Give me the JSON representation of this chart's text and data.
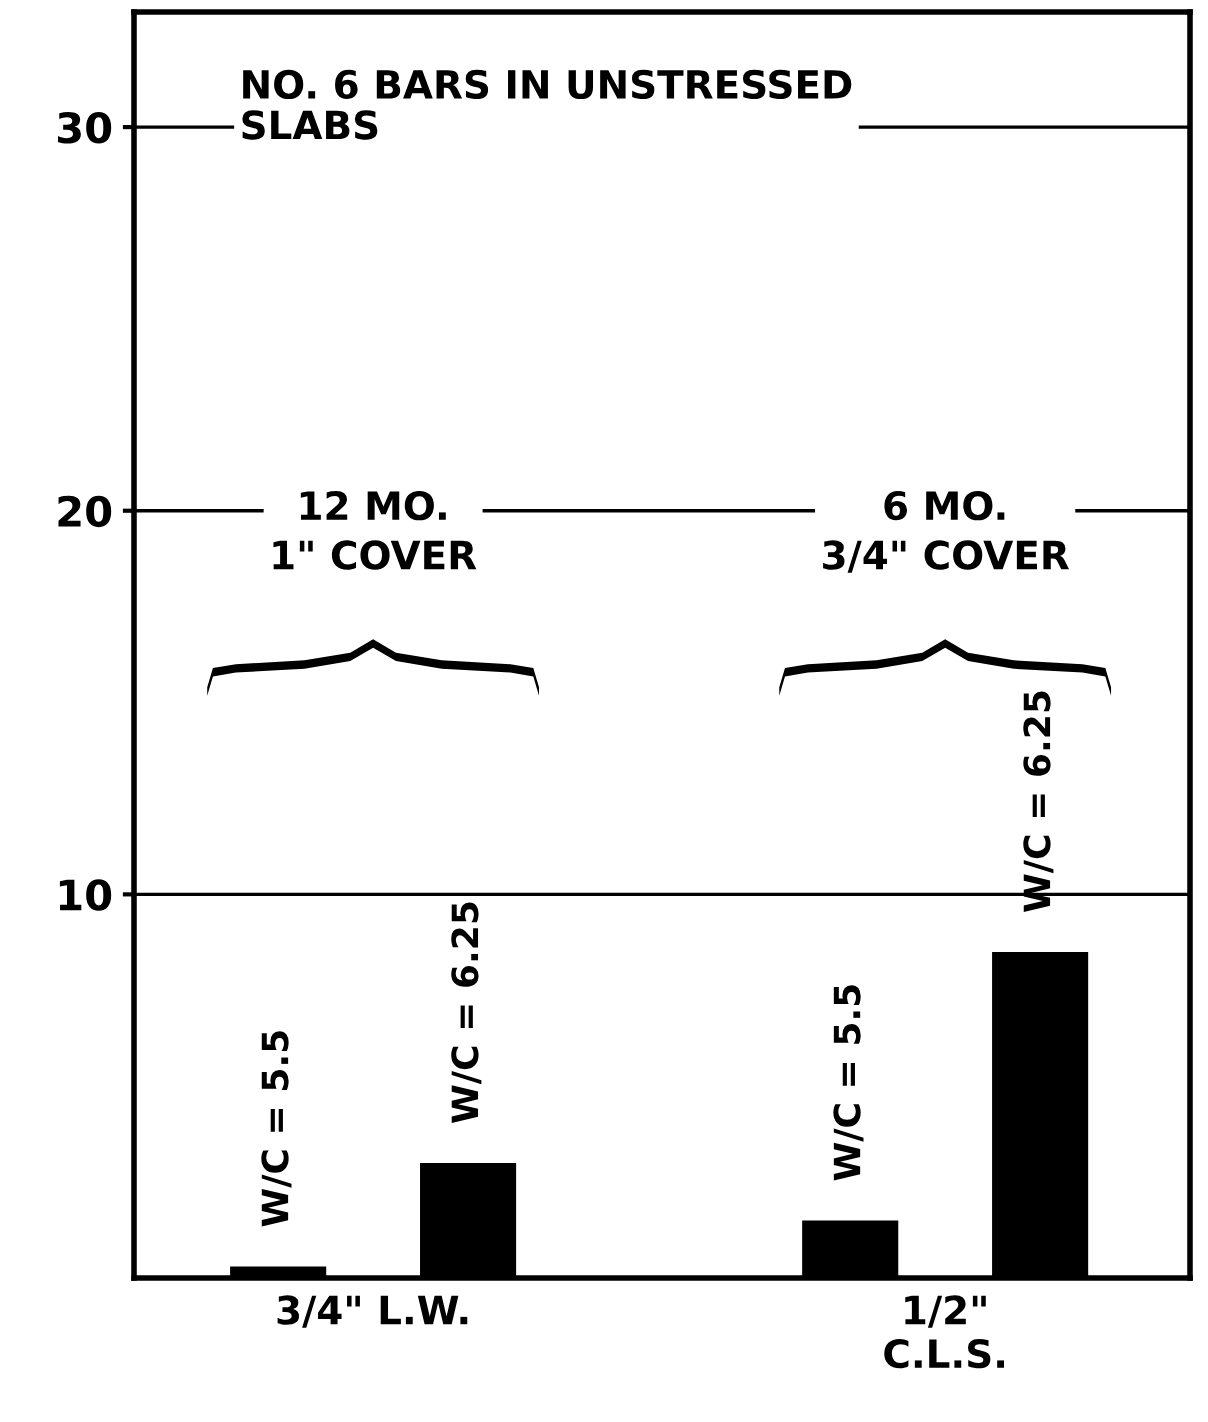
{
  "chart_data": {
    "type": "bar",
    "title": "NO. 6 BARS IN UNSTRESSED\nSLABS",
    "categories": [
      "3/4\" L.W.",
      "1/2\"\nC.L.S."
    ],
    "series": [
      {
        "name": "W/C = 5.5",
        "color": "#000000",
        "values": [
          0.3,
          1.5
        ]
      },
      {
        "name": "W/C = 6.25",
        "color": "#000000",
        "values": [
          3.0,
          8.5
        ]
      }
    ],
    "annotations": [
      "12 MO.\n1\" COVER",
      "6 MO.\n3/4\" COVER"
    ],
    "ylim": [
      0,
      33
    ],
    "yticks": [
      10,
      20,
      30
    ],
    "grid": "y"
  }
}
